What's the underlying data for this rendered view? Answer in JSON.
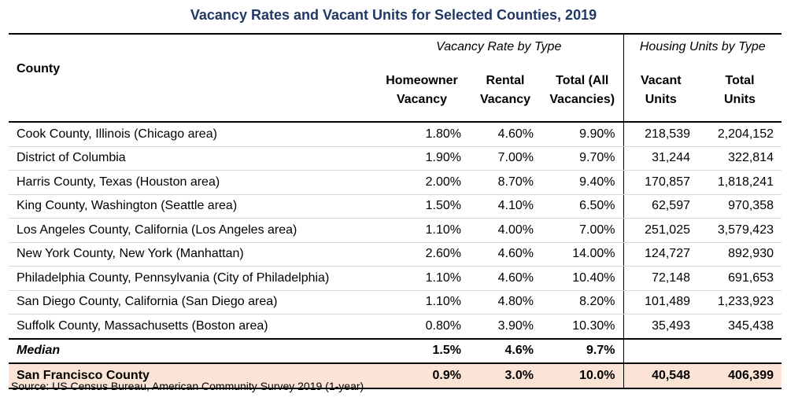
{
  "title": "Vacancy Rates and Vacant Units for Selected Counties, 2019",
  "groups": {
    "vacancy_rate": "Vacancy Rate by Type",
    "housing_units": "Housing Units by Type"
  },
  "headers": {
    "county": "County",
    "homeowner_line1": "Homeowner",
    "homeowner_line2": "Vacancy",
    "rental_line1": "Rental",
    "rental_line2": "Vacancy",
    "total_vac_line1": "Total (All",
    "total_vac_line2": "Vacancies)",
    "vacant_line1": "Vacant",
    "vacant_line2": "Units",
    "total_units_line1": "Total",
    "total_units_line2": "Units"
  },
  "rows": [
    {
      "county": "Cook County, Illinois (Chicago area)",
      "homeowner": "1.80%",
      "rental": "4.60%",
      "total": "9.90%",
      "vacant": "218,539",
      "units": "2,204,152"
    },
    {
      "county": "District of Columbia",
      "homeowner": "1.90%",
      "rental": "7.00%",
      "total": "9.70%",
      "vacant": "31,244",
      "units": "322,814"
    },
    {
      "county": "Harris County, Texas (Houston area)",
      "homeowner": "2.00%",
      "rental": "8.70%",
      "total": "9.40%",
      "vacant": "170,857",
      "units": "1,818,241"
    },
    {
      "county": "King County, Washington (Seattle area)",
      "homeowner": "1.50%",
      "rental": "4.10%",
      "total": "6.50%",
      "vacant": "62,597",
      "units": "970,358"
    },
    {
      "county": "Los Angeles County, California (Los Angeles area)",
      "homeowner": "1.10%",
      "rental": "4.00%",
      "total": "7.00%",
      "vacant": "251,025",
      "units": "3,579,423"
    },
    {
      "county": "New York County, New York (Manhattan)",
      "homeowner": "2.60%",
      "rental": "4.60%",
      "total": "14.00%",
      "vacant": "124,727",
      "units": "892,930"
    },
    {
      "county": "Philadelphia County, Pennsylvania (City of Philadelphia)",
      "homeowner": "1.10%",
      "rental": "4.60%",
      "total": "10.40%",
      "vacant": "72,148",
      "units": "691,653"
    },
    {
      "county": "San Diego County, California (San Diego area)",
      "homeowner": "1.10%",
      "rental": "4.80%",
      "total": "8.20%",
      "vacant": "101,489",
      "units": "1,233,923"
    },
    {
      "county": "Suffolk County, Massachusetts (Boston area)",
      "homeowner": "0.80%",
      "rental": "3.90%",
      "total": "10.30%",
      "vacant": "35,493",
      "units": "345,438"
    }
  ],
  "median": {
    "label": "Median",
    "homeowner": "1.5%",
    "rental": "4.6%",
    "total": "9.7%",
    "vacant": "",
    "units": ""
  },
  "highlight": {
    "county": "San Francisco County",
    "homeowner": "0.9%",
    "rental": "3.0%",
    "total": "10.0%",
    "vacant": "40,548",
    "units": "406,399",
    "color": "#fbe4d5"
  },
  "source": "Source: US Census Bureau, American Community Survey 2019 (1-year)",
  "colors": {
    "title": "#1f3864"
  }
}
